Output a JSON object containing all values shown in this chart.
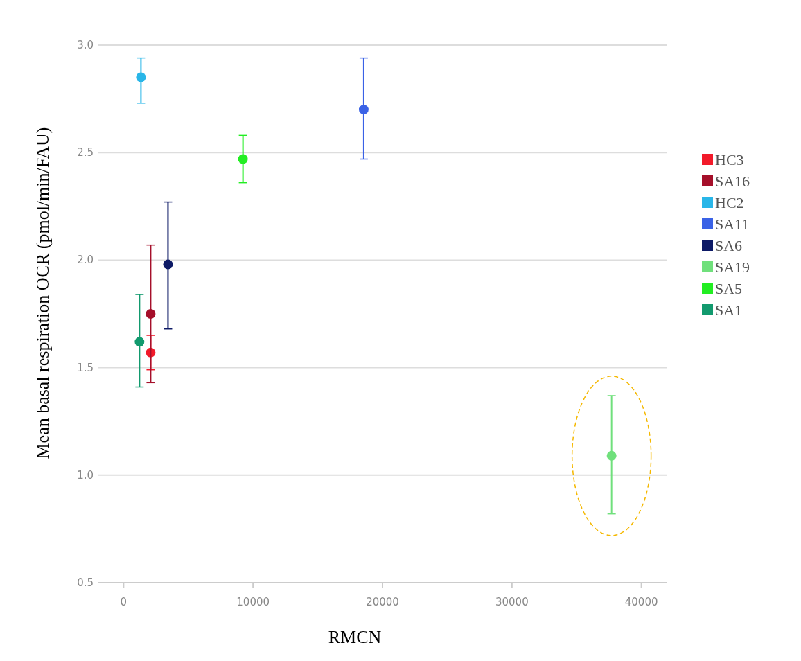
{
  "chart_data": {
    "type": "scatter",
    "xlabel": "RMCN",
    "ylabel": "Mean basal respiration OCR (pmol/min/FAU)",
    "xlim": [
      -2000,
      42000
    ],
    "xticks": [
      0,
      10000,
      20000,
      30000,
      40000
    ],
    "ylim": [
      0.5,
      3.0
    ],
    "yticks": [
      0.5,
      {
        "value": 1,
        "label": "1.0"
      },
      1.5,
      {
        "value": 2,
        "label": "2.0"
      },
      2.5,
      {
        "value": 3,
        "label": "3.0"
      }
    ],
    "grid": "y",
    "legend": "right",
    "marker": "circle",
    "series": [
      {
        "name": "HC3",
        "color": "#f21a2a",
        "x": [
          2090
        ],
        "values": [
          1.57
        ],
        "errors": [
          [
            1.49,
            1.65
          ]
        ]
      },
      {
        "name": "SA16",
        "color": "#a50f2a",
        "x": [
          2090
        ],
        "values": [
          1.75
        ],
        "errors": [
          [
            1.43,
            2.07
          ]
        ]
      },
      {
        "name": "HC2",
        "color": "#29b6e8",
        "x": [
          1340
        ],
        "values": [
          2.85
        ],
        "errors": [
          [
            2.73,
            2.94
          ]
        ]
      },
      {
        "name": "SA11",
        "color": "#3a62e6",
        "x": [
          18550
        ],
        "values": [
          2.7
        ],
        "errors": [
          [
            2.47,
            2.94
          ]
        ]
      },
      {
        "name": "SA6",
        "color": "#0d1a66",
        "x": [
          3430
        ],
        "values": [
          1.98
        ],
        "errors": [
          [
            1.68,
            2.27
          ]
        ]
      },
      {
        "name": "SA19",
        "color": "#70e07c",
        "x": [
          37700
        ],
        "values": [
          1.09
        ],
        "errors": [
          [
            0.82,
            1.37
          ]
        ]
      },
      {
        "name": "SA5",
        "color": "#22ee22",
        "x": [
          9220
        ],
        "values": [
          2.47
        ],
        "errors": [
          [
            2.36,
            2.58
          ]
        ]
      },
      {
        "name": "SA1",
        "color": "#129a6e",
        "x": [
          1230
        ],
        "values": [
          1.62
        ],
        "errors": [
          [
            1.41,
            1.84
          ]
        ]
      }
    ]
  }
}
